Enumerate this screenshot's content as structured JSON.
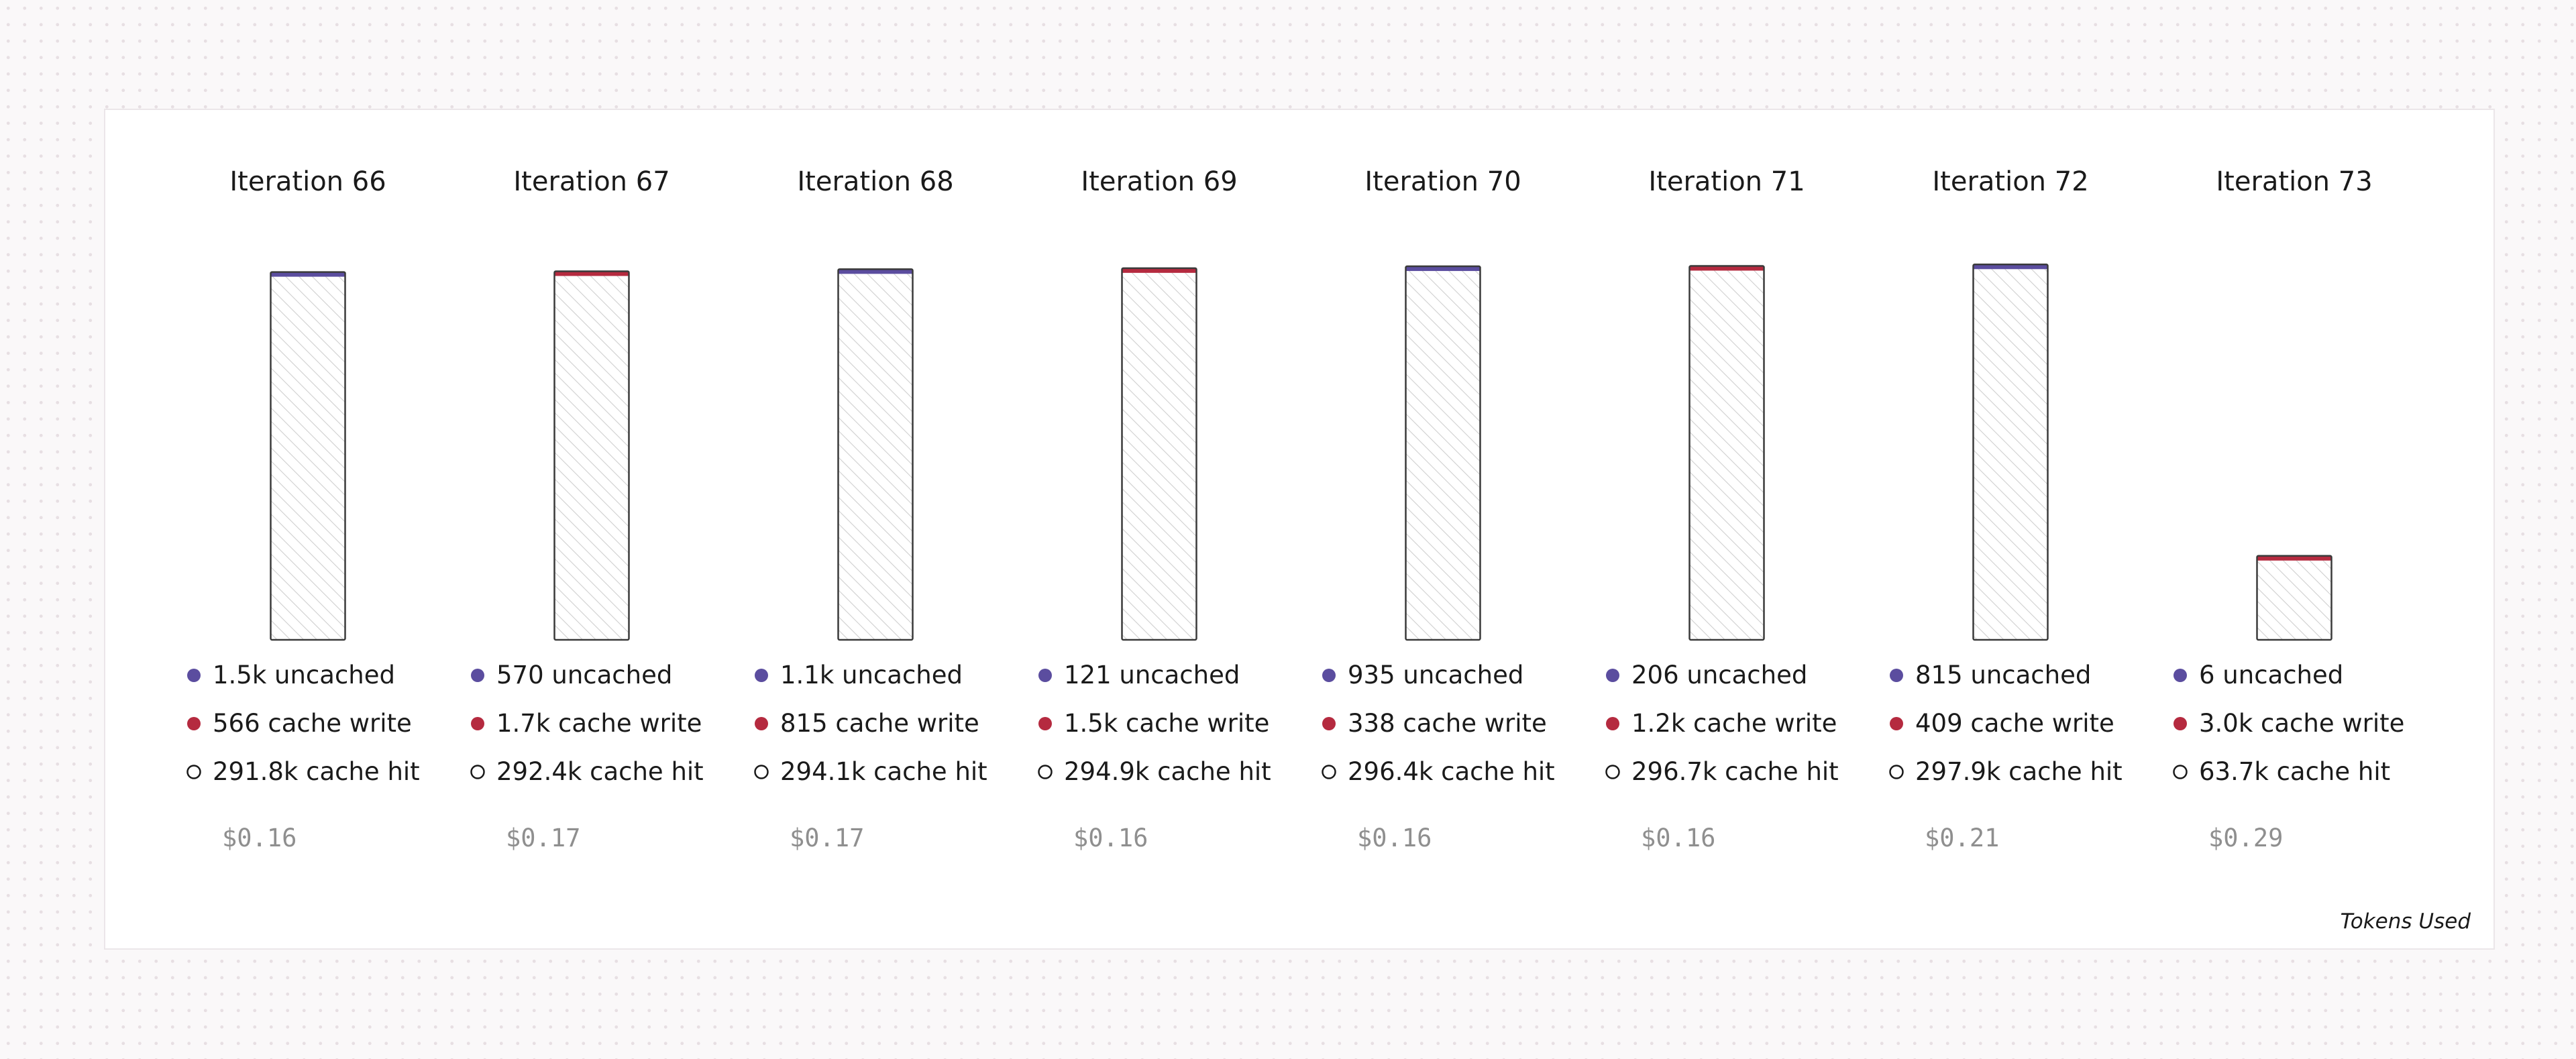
{
  "footer_label": "Tokens Used",
  "colors": {
    "uncached": "#5b4d9f",
    "cache_write": "#b52a3f",
    "cache_hit_fill": "#ffffff",
    "bar_outline": "#3a3a3a",
    "hatch": "#cfcfcf"
  },
  "chart_data": {
    "type": "bar",
    "stacked": true,
    "xlabel": "",
    "ylabel": "",
    "footer": "Tokens Used",
    "categories": [
      "Iteration 66",
      "Iteration 67",
      "Iteration 68",
      "Iteration 69",
      "Iteration 70",
      "Iteration 71",
      "Iteration 72",
      "Iteration 73"
    ],
    "series": [
      {
        "name": "uncached",
        "values": [
          1500,
          570,
          1100,
          121,
          935,
          206,
          815,
          6
        ],
        "labels": [
          "1.5k uncached",
          "570 uncached",
          "1.1k uncached",
          "121 uncached",
          "935 uncached",
          "206 uncached",
          "815 uncached",
          "6 uncached"
        ]
      },
      {
        "name": "cache write",
        "values": [
          566,
          1700,
          815,
          1500,
          338,
          1200,
          409,
          3000
        ],
        "labels": [
          "566 cache write",
          "1.7k cache write",
          "815 cache write",
          "1.5k cache write",
          "338 cache write",
          "1.2k cache write",
          "409 cache write",
          "3.0k cache write"
        ]
      },
      {
        "name": "cache hit",
        "values": [
          291800,
          292400,
          294100,
          294900,
          296400,
          296700,
          297900,
          63700
        ],
        "labels": [
          "291.8k cache hit",
          "292.4k cache hit",
          "294.1k cache hit",
          "294.9k cache hit",
          "296.4k cache hit",
          "296.7k cache hit",
          "297.9k cache hit",
          "63.7k cache hit"
        ]
      }
    ],
    "costs": [
      "$0.16",
      "$0.17",
      "$0.17",
      "$0.16",
      "$0.16",
      "$0.16",
      "$0.21",
      "$0.29"
    ]
  }
}
